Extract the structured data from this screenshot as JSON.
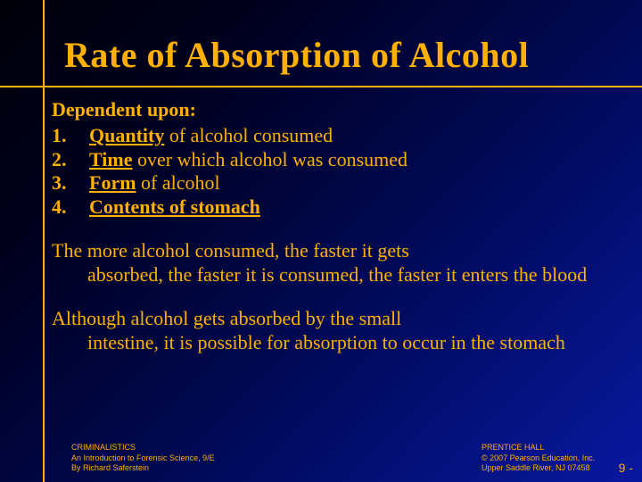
{
  "title": "Rate of Absorption of Alcohol",
  "heading": "Dependent upon:",
  "items": [
    {
      "num": "1.",
      "u": "Quantity",
      "rest": " of alcohol consumed"
    },
    {
      "num": "2.",
      "u": "Time",
      "rest": " over which alcohol was consumed"
    },
    {
      "num": "3.",
      "u": "Form",
      "rest": " of alcohol"
    },
    {
      "num": "4.",
      "u": "Contents of stomach",
      "rest": ""
    }
  ],
  "para1_first": "The more alcohol consumed, the faster it gets",
  "para1_rest": "absorbed, the faster it is consumed, the faster it enters the blood",
  "para2_first": "Although alcohol gets absorbed by the small",
  "para2_rest": "intestine, it is possible for absorption to occur in the stomach",
  "footer_left": {
    "l1": "CRIMINALISTICS",
    "l2": "An Introduction to Forensic Science, 9/E",
    "l3": "By Richard Saferstein"
  },
  "footer_right": {
    "l1": "PRENTICE HALL",
    "l2": "© 2007 Pearson Education, Inc.",
    "l3": "Upper Saddle River, NJ 07458"
  },
  "pagenum": "9 -"
}
